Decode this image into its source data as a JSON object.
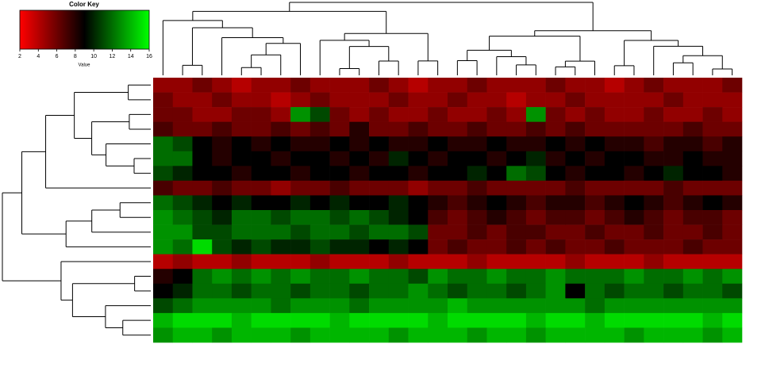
{
  "chart_data": {
    "type": "heatmap",
    "color_key": {
      "title": "Color Key",
      "xlabel": "Value",
      "xlim": [
        2,
        16
      ],
      "xticks": [
        2,
        4,
        6,
        8,
        10,
        12,
        14,
        16
      ],
      "colors": [
        "#ff0000",
        "#000000",
        "#00ff00"
      ]
    },
    "values": [
      [
        5,
        5,
        6,
        5,
        4,
        5,
        5,
        6,
        5,
        5,
        5,
        6,
        5,
        4,
        5,
        5,
        6,
        5,
        5,
        5,
        6,
        5,
        5,
        4,
        5,
        6,
        5,
        5,
        5,
        6
      ],
      [
        6,
        5,
        5,
        6,
        5,
        5,
        4,
        5,
        6,
        5,
        5,
        5,
        6,
        5,
        5,
        6,
        5,
        5,
        4,
        5,
        5,
        6,
        5,
        5,
        5,
        5,
        6,
        5,
        5,
        5
      ],
      [
        6,
        6,
        5,
        5,
        6,
        6,
        5,
        13,
        11,
        6,
        5,
        6,
        5,
        5,
        6,
        5,
        5,
        6,
        5,
        13,
        6,
        5,
        6,
        5,
        5,
        6,
        5,
        5,
        6,
        5
      ],
      [
        7,
        6,
        6,
        7,
        6,
        6,
        7,
        6,
        7,
        6,
        8,
        6,
        6,
        7,
        6,
        6,
        7,
        6,
        6,
        7,
        6,
        7,
        6,
        6,
        6,
        6,
        6,
        7,
        6,
        6
      ],
      [
        12,
        11,
        9,
        8,
        9,
        8,
        9,
        8,
        8,
        9,
        8,
        9,
        8,
        8,
        9,
        8,
        8,
        9,
        8,
        8,
        9,
        8,
        9,
        8,
        8,
        7,
        8,
        8,
        7,
        8
      ],
      [
        12,
        12,
        9,
        8,
        9,
        9,
        8,
        9,
        9,
        8,
        9,
        8,
        10,
        9,
        8,
        9,
        9,
        8,
        9,
        10,
        8,
        9,
        8,
        9,
        9,
        8,
        8,
        9,
        8,
        8
      ],
      [
        11,
        10,
        9,
        9,
        8,
        9,
        9,
        8,
        9,
        9,
        8,
        9,
        9,
        8,
        9,
        9,
        10,
        9,
        12,
        11,
        9,
        8,
        9,
        9,
        8,
        9,
        10,
        9,
        9,
        8
      ],
      [
        7,
        6,
        6,
        7,
        6,
        6,
        5,
        6,
        6,
        7,
        6,
        6,
        6,
        5,
        6,
        6,
        7,
        6,
        6,
        6,
        6,
        7,
        6,
        6,
        6,
        6,
        7,
        6,
        6,
        6
      ],
      [
        12,
        11,
        10,
        9,
        10,
        9,
        9,
        10,
        9,
        10,
        9,
        9,
        10,
        9,
        8,
        7,
        8,
        9,
        8,
        7,
        8,
        8,
        7,
        8,
        9,
        8,
        7,
        8,
        9,
        8
      ],
      [
        13,
        12,
        11,
        10,
        12,
        12,
        11,
        12,
        12,
        11,
        12,
        11,
        10,
        9,
        7,
        6,
        7,
        8,
        7,
        6,
        7,
        7,
        6,
        7,
        8,
        7,
        6,
        7,
        7,
        6
      ],
      [
        13,
        13,
        11,
        11,
        12,
        12,
        12,
        11,
        12,
        12,
        11,
        12,
        12,
        11,
        6,
        6,
        7,
        6,
        7,
        7,
        6,
        6,
        7,
        6,
        6,
        7,
        6,
        6,
        7,
        6
      ],
      [
        13,
        12,
        15,
        11,
        10,
        11,
        10,
        10,
        11,
        10,
        10,
        9,
        10,
        9,
        6,
        7,
        6,
        6,
        7,
        6,
        7,
        6,
        6,
        7,
        6,
        6,
        6,
        7,
        6,
        6
      ],
      [
        4,
        5,
        4,
        4,
        5,
        4,
        4,
        4,
        5,
        4,
        4,
        4,
        5,
        4,
        4,
        4,
        5,
        4,
        4,
        4,
        4,
        5,
        4,
        4,
        4,
        5,
        4,
        4,
        4,
        4
      ],
      [
        8,
        9,
        12,
        13,
        12,
        13,
        12,
        13,
        12,
        12,
        13,
        12,
        12,
        11,
        13,
        12,
        12,
        13,
        12,
        12,
        13,
        12,
        12,
        12,
        13,
        12,
        12,
        13,
        12,
        13
      ],
      [
        9,
        10,
        12,
        12,
        11,
        12,
        12,
        11,
        12,
        12,
        11,
        12,
        12,
        13,
        12,
        11,
        12,
        12,
        11,
        12,
        13,
        9,
        12,
        11,
        12,
        12,
        11,
        12,
        12,
        11
      ],
      [
        11,
        12,
        13,
        13,
        13,
        13,
        12,
        13,
        13,
        13,
        12,
        13,
        13,
        13,
        13,
        14,
        13,
        13,
        13,
        13,
        13,
        13,
        12,
        13,
        13,
        13,
        13,
        13,
        13,
        13
      ],
      [
        14,
        15,
        15,
        15,
        14,
        15,
        15,
        15,
        15,
        14,
        15,
        15,
        15,
        15,
        14,
        15,
        15,
        15,
        15,
        14,
        15,
        15,
        14,
        15,
        15,
        15,
        15,
        15,
        14,
        15
      ],
      [
        13,
        14,
        14,
        13,
        14,
        14,
        14,
        13,
        14,
        14,
        14,
        14,
        13,
        14,
        14,
        14,
        13,
        14,
        14,
        13,
        14,
        14,
        14,
        14,
        13,
        14,
        14,
        14,
        13,
        14
      ]
    ]
  }
}
